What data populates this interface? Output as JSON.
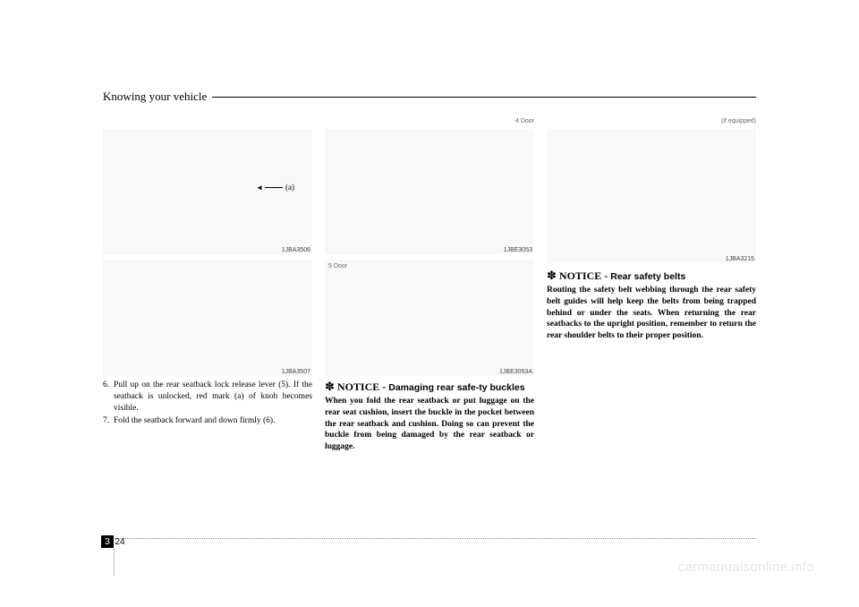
{
  "header": {
    "title": "Knowing your vehicle"
  },
  "col1": {
    "img1_label": "1JBA3506",
    "img2_label": "1JBA3507",
    "annotation": "(a)",
    "item6_num": "6.",
    "item6_text": "Pull up on the rear seatback lock release lever (5). If the seatback is unlocked, red mark (a) of knob becomes visible.",
    "item7_num": "7.",
    "item7_text": "Fold the seatback forward and down firmly (6)."
  },
  "col2": {
    "top_label": "4 Door",
    "img1_label": "1JBE3053",
    "five_door": "5 Door",
    "img2_label": "1JBE3053A",
    "notice_star": "✽",
    "notice_head": "NOTICE -",
    "notice_sub": "Damaging rear safe-ty buckles",
    "notice_body": "When you fold the rear seatback or put luggage on the rear seat cushion, insert the buckle in the pocket between the rear seatback and cushion. Doing so can prevent the buckle from being damaged by the rear seatback or luggage."
  },
  "col3": {
    "top_label": "(if equipped)",
    "img_label": "1JBA3215",
    "notice_star": "✽",
    "notice_head": "NOTICE -",
    "notice_sub": "Rear safety belts",
    "notice_body": "Routing the safety belt webbing through the rear safety belt guides will help keep the belts from being trapped behind or under the seats. When returning the rear seatbacks to the upright position, remember to return the rear shoulder belts to their proper position."
  },
  "footer": {
    "section": "3",
    "page": "24"
  },
  "watermark": "carmanualsonline.info"
}
